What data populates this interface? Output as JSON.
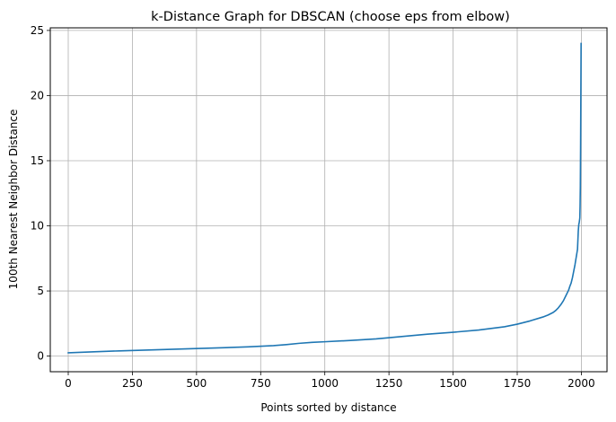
{
  "chart_data": {
    "type": "line",
    "title": "k-Distance Graph for DBSCAN (choose eps from elbow)",
    "xlabel": "Points sorted by distance",
    "ylabel": "100th Nearest Neighbor Distance",
    "xlim": [
      -70,
      2100
    ],
    "ylim": [
      -1.2,
      25.2
    ],
    "xticks": [
      0,
      250,
      500,
      750,
      1000,
      1250,
      1500,
      1750,
      2000
    ],
    "yticks": [
      0,
      5,
      10,
      15,
      20,
      25
    ],
    "grid": true,
    "series": [
      {
        "color": "#1f77b4",
        "x": [
          0,
          100,
          200,
          300,
          400,
          500,
          600,
          700,
          800,
          850,
          900,
          950,
          1000,
          1100,
          1200,
          1300,
          1400,
          1500,
          1600,
          1700,
          1750,
          1800,
          1850,
          1870,
          1890,
          1900,
          1910,
          1920,
          1930,
          1940,
          1950,
          1955,
          1960,
          1965,
          1970,
          1975,
          1980,
          1985,
          1988,
          1990,
          1992,
          1994,
          1995,
          1996,
          1997,
          1998,
          1999
        ],
        "y": [
          0.25,
          0.33,
          0.4,
          0.46,
          0.52,
          0.58,
          0.64,
          0.71,
          0.8,
          0.88,
          0.98,
          1.05,
          1.1,
          1.2,
          1.32,
          1.5,
          1.68,
          1.83,
          2.0,
          2.25,
          2.45,
          2.7,
          3.0,
          3.15,
          3.35,
          3.5,
          3.7,
          3.95,
          4.25,
          4.65,
          5.05,
          5.35,
          5.6,
          6.0,
          6.5,
          7.0,
          7.6,
          8.2,
          9.6,
          10.1,
          10.3,
          10.6,
          11.5,
          13.0,
          16.0,
          20.0,
          24.0
        ]
      }
    ]
  }
}
